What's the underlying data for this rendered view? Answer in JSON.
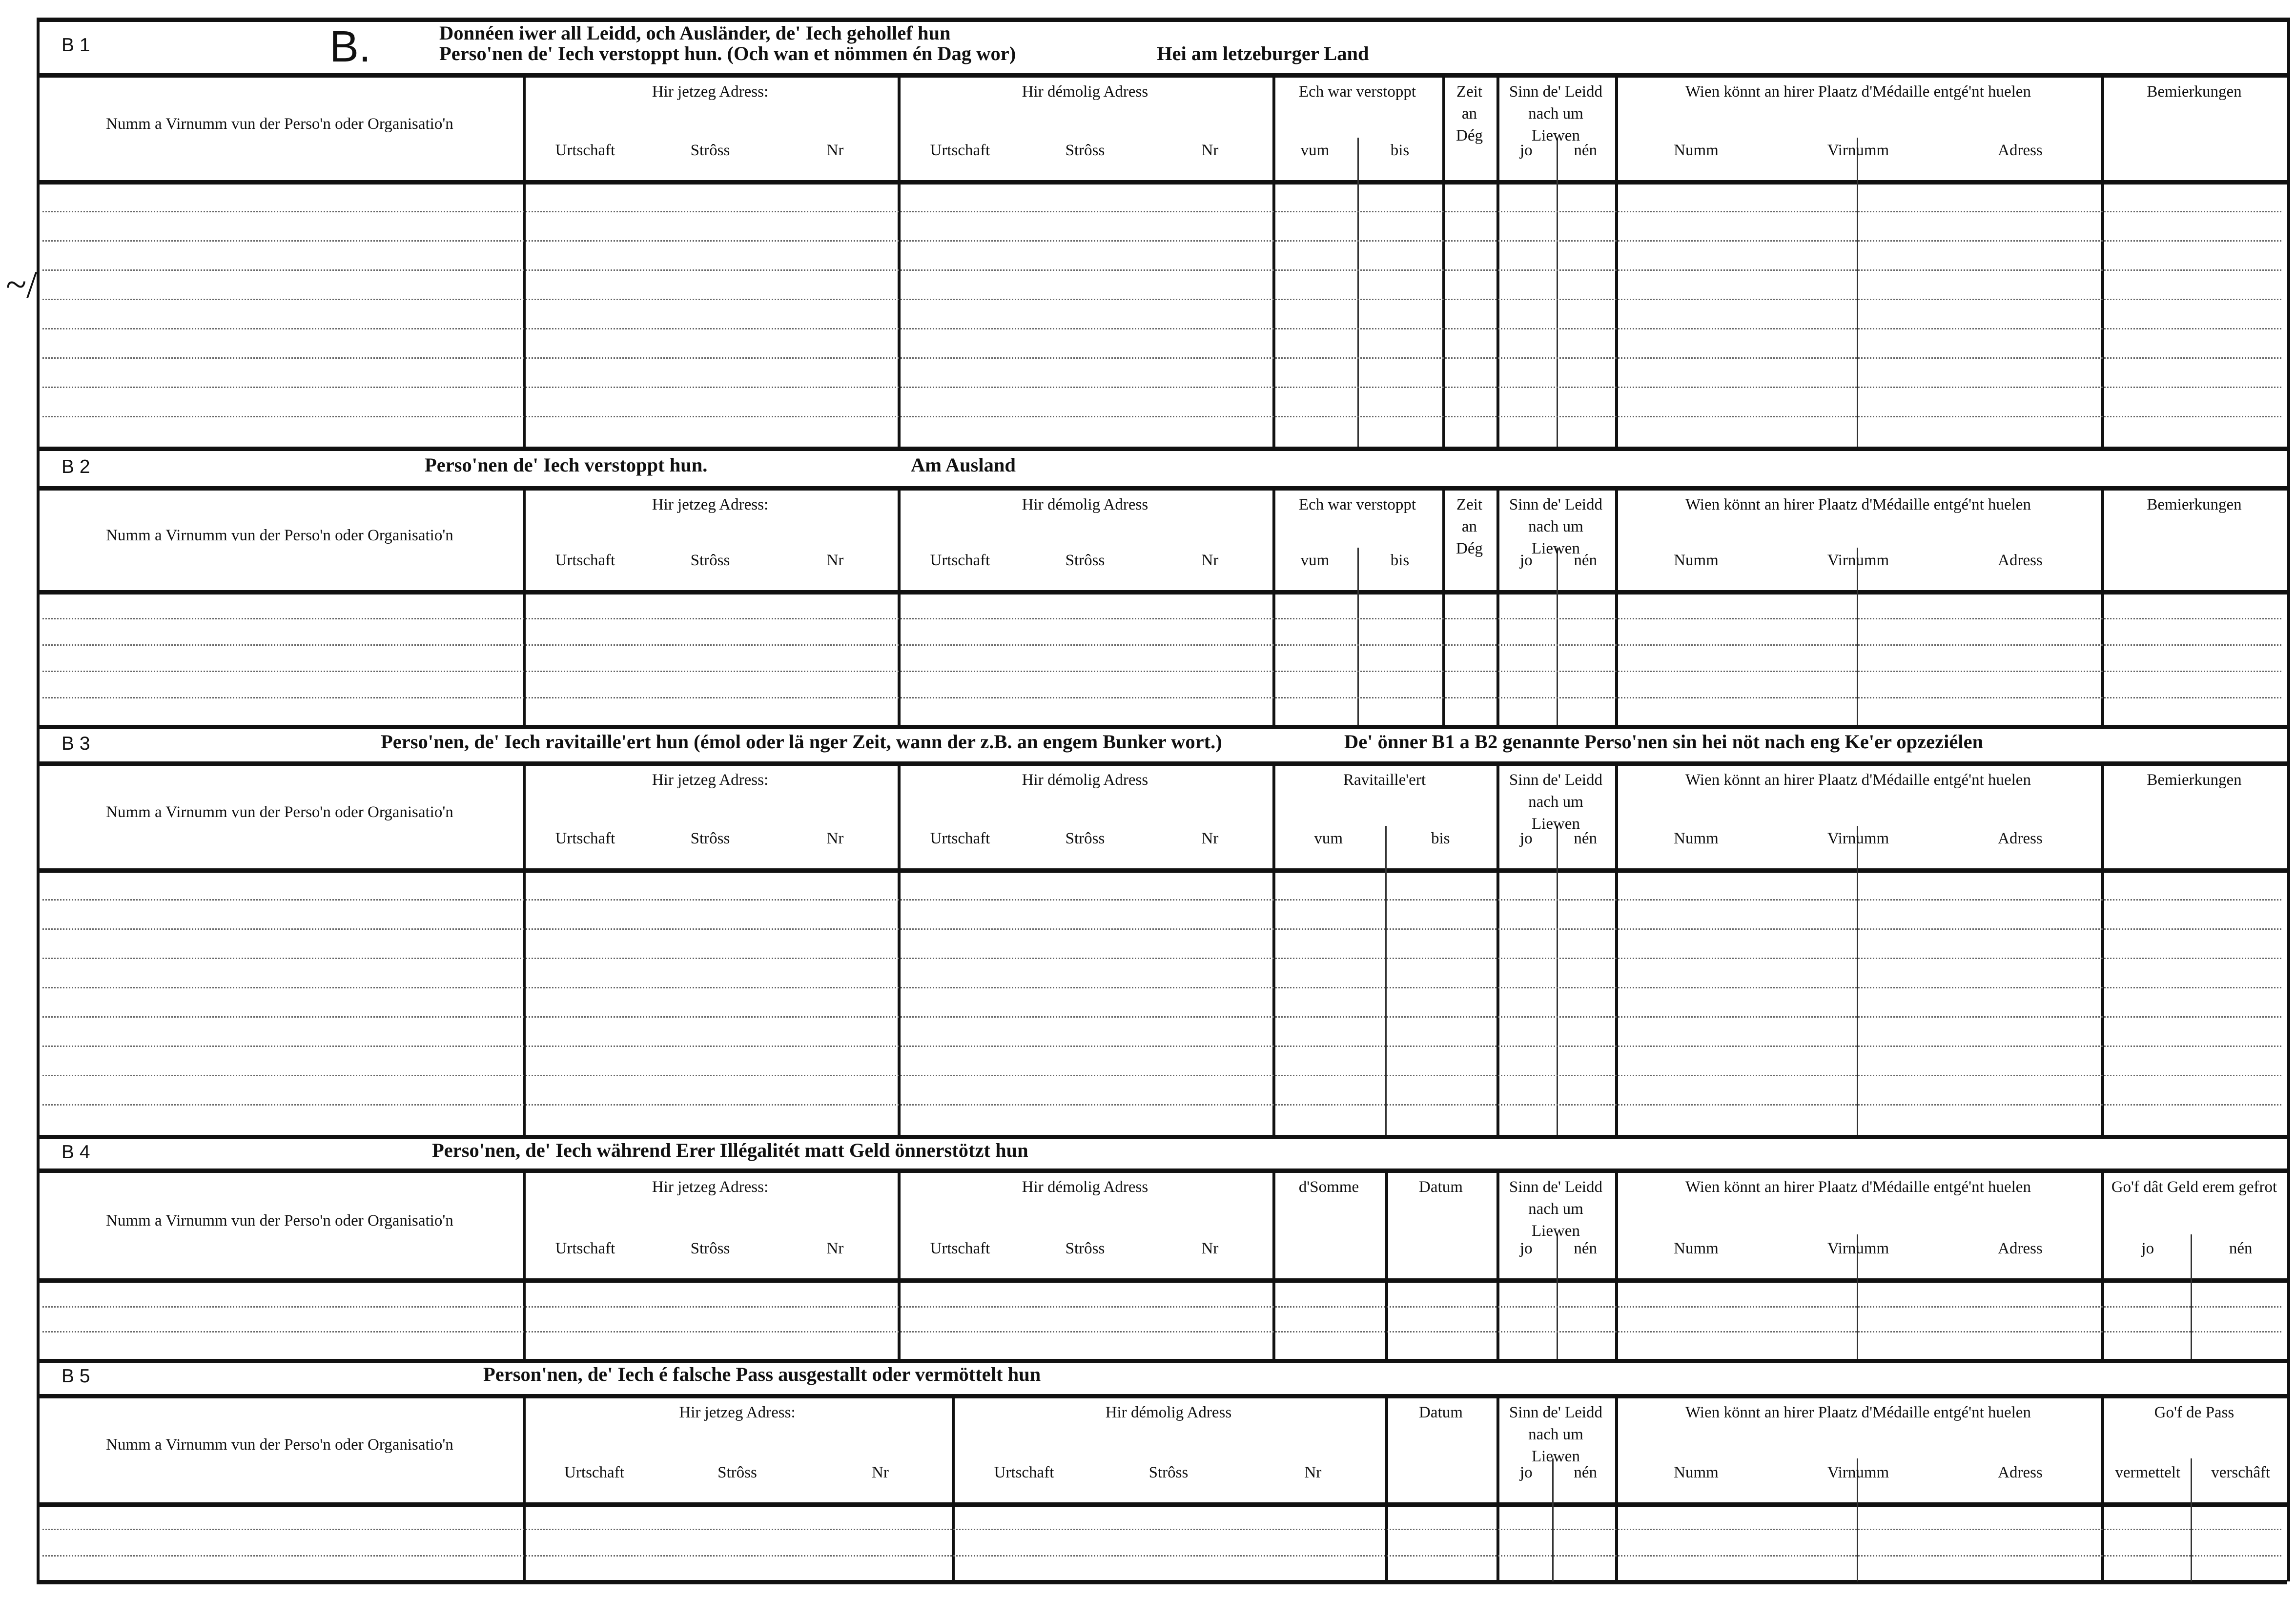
{
  "form": {
    "letter": "B.",
    "side_mark": "~/"
  },
  "sections": [
    {
      "code": "B 1",
      "title": [
        "Donnéen iwer all Leidd, och Ausländer, de' Iech gehollef hun",
        "Perso'nen de' Iech verstoppt hun. (Och wan et nömmen én Dag wor)"
      ],
      "title_extra": "Hei am letzeburger Land",
      "headers": [
        {
          "main": "Numm a Virnumm vun der Perso'n oder Organisatio'n",
          "subs": []
        },
        {
          "main": "Hir jetzeg Adress:",
          "subs": [
            "Urtschaft",
            "Strôss",
            "Nr"
          ]
        },
        {
          "main": "Hir démolig Adress",
          "subs": [
            "Urtschaft",
            "Strôss",
            "Nr"
          ]
        },
        {
          "main": "Ech war verstoppt",
          "subs": [
            "vum",
            "bis"
          ]
        },
        {
          "main": "Zeit an Dég",
          "subs": []
        },
        {
          "main": "Sinn de' Leidd nach um Liewen",
          "subs": [
            "jo",
            "nén"
          ]
        },
        {
          "main": "Wien könnt an hirer Plaatz d'Médaille entgé'nt huelen",
          "subs": [
            "Numm",
            "Virnumm",
            "Adress"
          ]
        },
        {
          "main": "Bemierkungen",
          "subs": []
        }
      ]
    },
    {
      "code": "B 2",
      "title": [
        "Perso'nen de' Iech verstoppt hun."
      ],
      "title_extra": "Am Ausland",
      "headers": [
        {
          "main": "Numm a Virnumm vun der Perso'n oder Organisatio'n",
          "subs": []
        },
        {
          "main": "Hir jetzeg Adress:",
          "subs": [
            "Urtschaft",
            "Strôss",
            "Nr"
          ]
        },
        {
          "main": "Hir démolig Adress",
          "subs": [
            "Urtschaft",
            "Strôss",
            "Nr"
          ]
        },
        {
          "main": "Ech war verstoppt",
          "subs": [
            "vum",
            "bis"
          ]
        },
        {
          "main": "Zeit an Dég",
          "subs": []
        },
        {
          "main": "Sinn de' Leidd nach um Liewen",
          "subs": [
            "jo",
            "nén"
          ]
        },
        {
          "main": "Wien könnt an hirer Plaatz d'Médaille entgé'nt huelen",
          "subs": [
            "Numm",
            "Virnumm",
            "Adress"
          ]
        },
        {
          "main": "Bemierkungen",
          "subs": []
        }
      ]
    },
    {
      "code": "B 3",
      "title": [
        "Perso'nen, de' Iech ravitaille'ert hun (émol oder lä nger Zeit, wann der z.B. an engem Bunker wort.)"
      ],
      "title_extra": "De' önner B1 a B2 genannte Perso'nen sin hei nöt nach eng Ke'er opzeziélen",
      "headers": [
        {
          "main": "Numm a Virnumm vun der Perso'n oder Organisatio'n",
          "subs": []
        },
        {
          "main": "Hir jetzeg Adress:",
          "subs": [
            "Urtschaft",
            "Strôss",
            "Nr"
          ]
        },
        {
          "main": "Hir démolig Adress",
          "subs": [
            "Urtschaft",
            "Strôss",
            "Nr"
          ]
        },
        {
          "main": "Ravitaille'ert",
          "subs": [
            "vum",
            "bis"
          ]
        },
        {
          "main": "Sinn de' Leidd nach um Liewen",
          "subs": [
            "jo",
            "nén"
          ]
        },
        {
          "main": "Wien könnt an hirer Plaatz d'Médaille entgé'nt huelen",
          "subs": [
            "Numm",
            "Virnumm",
            "Adress"
          ]
        },
        {
          "main": "Bemierkungen",
          "subs": []
        }
      ]
    },
    {
      "code": "B 4",
      "title": [
        "Perso'nen, de' Iech während Erer Illégalitét matt Geld önnerstötzt hun"
      ],
      "title_extra": "",
      "headers": [
        {
          "main": "Numm a Virnumm vun der Perso'n oder Organisatio'n",
          "subs": []
        },
        {
          "main": "Hir jetzeg Adress:",
          "subs": [
            "Urtschaft",
            "Strôss",
            "Nr"
          ]
        },
        {
          "main": "Hir démolig Adress",
          "subs": [
            "Urtschaft",
            "Strôss",
            "Nr"
          ]
        },
        {
          "main": "d'Somme",
          "subs": []
        },
        {
          "main": "Datum",
          "subs": []
        },
        {
          "main": "Sinn de' Leidd nach um Liewen",
          "subs": [
            "jo",
            "nén"
          ]
        },
        {
          "main": "Wien könnt an hirer Plaatz d'Médaille entgé'nt huelen",
          "subs": [
            "Numm",
            "Virnumm",
            "Adress"
          ]
        },
        {
          "main": "Go'f dât Geld erem gefrot",
          "subs": [
            "jo",
            "nén"
          ]
        }
      ]
    },
    {
      "code": "B 5",
      "title": [
        "Person'nen, de' Iech é falsche Pass ausgestallt oder vermöttelt hun"
      ],
      "title_extra": "",
      "headers": [
        {
          "main": "Numm a Virnumm vun der Perso'n oder Organisatio'n",
          "subs": []
        },
        {
          "main": "Hir jetzeg Adress:",
          "subs": [
            "Urtschaft",
            "Strôss",
            "Nr"
          ]
        },
        {
          "main": "Hir démolig Adress",
          "subs": [
            "Urtschaft",
            "Strôss",
            "Nr"
          ]
        },
        {
          "main": "Datum",
          "subs": []
        },
        {
          "main": "Sinn de' Leidd nach um Liewen",
          "subs": [
            "jo",
            "nén"
          ]
        },
        {
          "main": "Wien könnt an hirer Plaatz d'Médaille entgé'nt huelen",
          "subs": [
            "Numm",
            "Virnumm",
            "Adress"
          ]
        },
        {
          "main": "Go'f de Pass",
          "subs": [
            "vermettelt",
            "verschâft"
          ]
        }
      ]
    }
  ]
}
